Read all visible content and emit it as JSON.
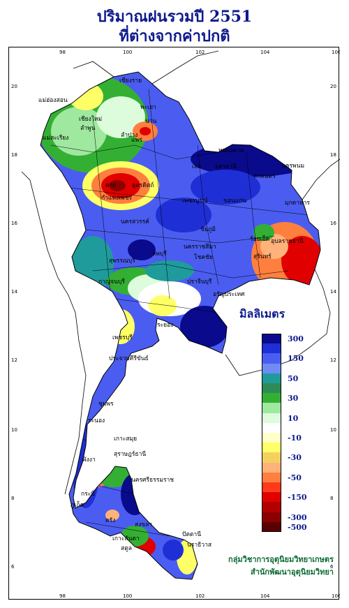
{
  "title_line1": "ปริมาณฝนรวมปี  2551",
  "title_line2": "ที่ต่างจากค่าปกติ",
  "legend": {
    "title": "มิลลิเมตร",
    "classes": [
      {
        "label": "300",
        "color": "#0a0a8c"
      },
      {
        "label": "",
        "color": "#1f2fd6"
      },
      {
        "label": "150",
        "color": "#4a5df0"
      },
      {
        "label": "",
        "color": "#6f8cf5"
      },
      {
        "label": "50",
        "color": "#1f9b9b"
      },
      {
        "label": "",
        "color": "#2e8b57"
      },
      {
        "label": "30",
        "color": "#33b033"
      },
      {
        "label": "",
        "color": "#9fe89f"
      },
      {
        "label": "10",
        "color": "#dcfcdc"
      },
      {
        "label": "",
        "color": "#ffffff"
      },
      {
        "label": "-10",
        "color": "#ffffc8"
      },
      {
        "label": "",
        "color": "#ffff66"
      },
      {
        "label": "-30",
        "color": "#f4d060"
      },
      {
        "label": "",
        "color": "#ffb27a"
      },
      {
        "label": "-50",
        "color": "#ff7f3f"
      },
      {
        "label": "",
        "color": "#ff3a1a"
      },
      {
        "label": "-150",
        "color": "#e00000"
      },
      {
        "label": "",
        "color": "#b00000"
      },
      {
        "label": "-300",
        "color": "#8c0000"
      },
      {
        "label": "-500",
        "color": "#5a0000"
      }
    ]
  },
  "axes": {
    "lon_ticks": [
      "98",
      "100",
      "102",
      "104",
      "106"
    ],
    "lat_ticks": [
      "20",
      "18",
      "16",
      "14",
      "12",
      "10",
      "8",
      "6"
    ]
  },
  "provinces": [
    "เชียงราย",
    "แม่ฮ่องสอน",
    "พะเยา",
    "เชียงใหม่",
    "ลำพูน",
    "น่าน",
    "ลำปาง",
    "แพร่",
    "แม่สะเรียง",
    "หนองคาย",
    "อุดรธานี",
    "นครพนม",
    "เลย",
    "สกลนคร",
    "ตาก",
    "อุตรดิตถ์",
    "มุกดาหาร",
    "เพชรบูรณ์",
    "ขอนแก่น",
    "กำแพงเพชร",
    "นครสวรรค์",
    "ร้อยเอ็ด",
    "อุบลราชธานี",
    "ชัยภูมิ",
    "สุรินทร์",
    "ลพบุรี",
    "นครราชสีมา",
    "สุพรรณบุรี",
    "โชคชัย",
    "กาญจนบุรี",
    "ปราจีนบุรี",
    "อรัญประเทศ",
    "ระยอง",
    "เพชรบุรี",
    "ประจวบคีรีขันธ์",
    "ชุมพร",
    "ระนอง",
    "เกาะสมุย",
    "สุราษฎร์ธานี",
    "นครศรีธรรมราช",
    "พังงา",
    "ภูเก็ต",
    "กระบี่",
    "ตรัง",
    "สงขลา",
    "เกาะลันตา",
    "ปัตตานี",
    "นราธิวาส",
    "สตูล"
  ],
  "credit_line1": "กลุ่มวิชาการอุตุนิยมวิทยาเกษตร",
  "credit_line2": "สำนักพัฒนาอุตุนิยมวิทยา"
}
